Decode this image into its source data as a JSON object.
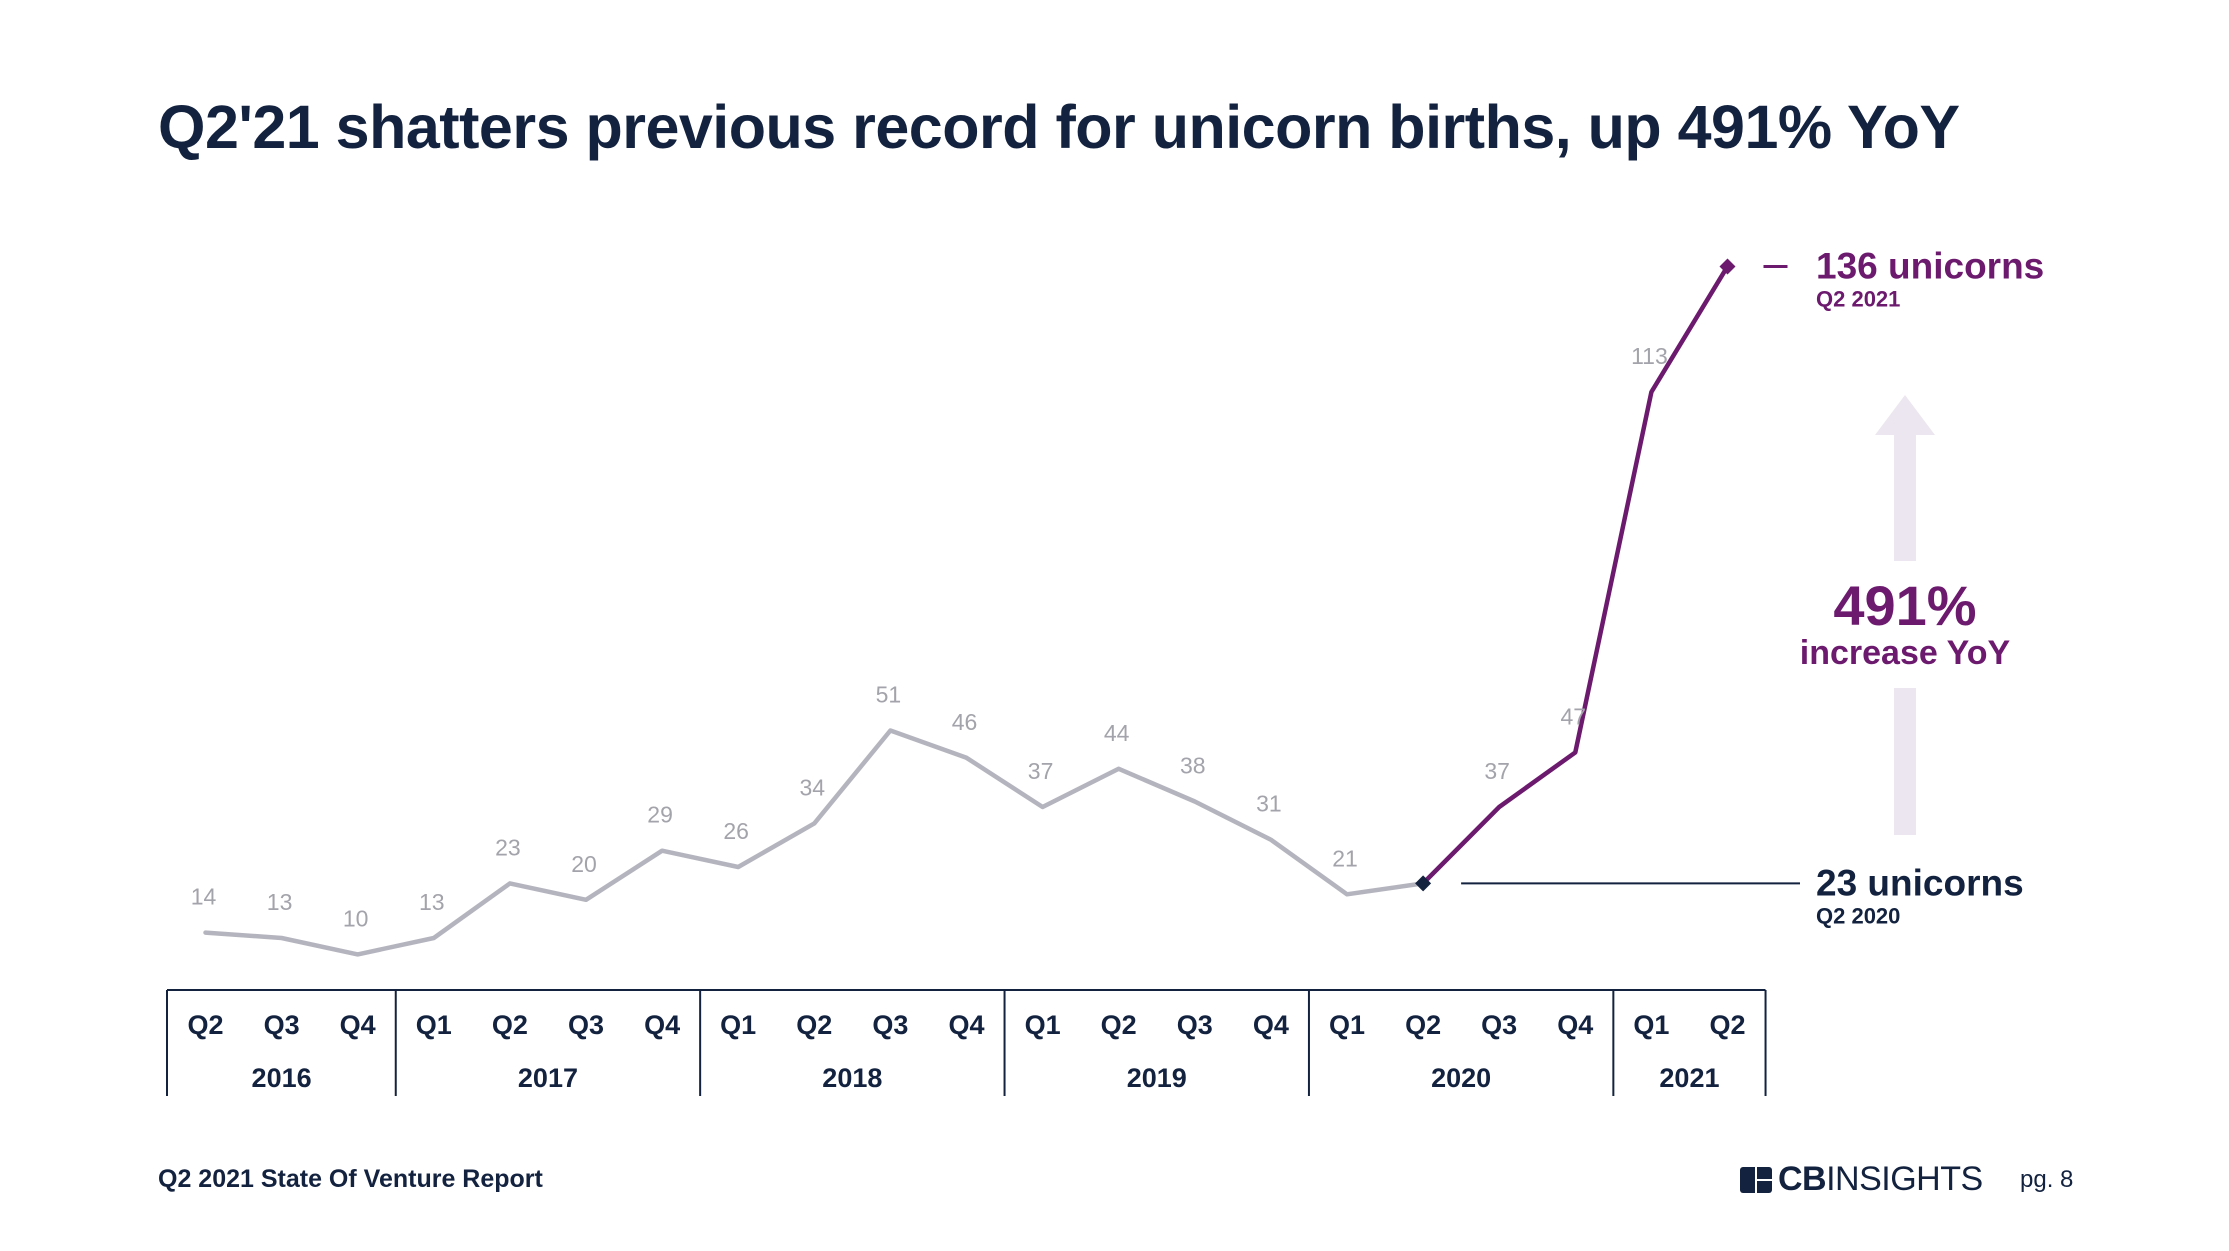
{
  "title": "Q2'21 shatters previous record for unicorn births, up 491% YoY",
  "chart_data": {
    "type": "line",
    "title": "Q2'21 shatters previous record for unicorn births, up 491% YoY",
    "xlabel": "",
    "ylabel": "",
    "categories": [
      "Q2",
      "Q3",
      "Q4",
      "Q1",
      "Q2",
      "Q3",
      "Q4",
      "Q1",
      "Q2",
      "Q3",
      "Q4",
      "Q1",
      "Q2",
      "Q3",
      "Q4",
      "Q1",
      "Q2",
      "Q3",
      "Q4",
      "Q1",
      "Q2"
    ],
    "years": [
      {
        "label": "2016",
        "quarters": 3
      },
      {
        "label": "2017",
        "quarters": 4
      },
      {
        "label": "2018",
        "quarters": 4
      },
      {
        "label": "2019",
        "quarters": 4
      },
      {
        "label": "2020",
        "quarters": 4
      },
      {
        "label": "2021",
        "quarters": 2
      }
    ],
    "values": [
      14,
      13,
      10,
      13,
      23,
      20,
      29,
      26,
      34,
      51,
      46,
      37,
      44,
      38,
      31,
      21,
      23,
      37,
      47,
      113,
      136
    ],
    "highlight_start_index": 16,
    "ylim": [
      0,
      140
    ],
    "grid": false,
    "legend": "none",
    "colors": {
      "base": "#b4b4be",
      "highlight": "#6c1a6e",
      "label": "#a3a3ab",
      "axis": "#13223f",
      "arrow": "#ece6f0"
    },
    "annotations": {
      "peak": {
        "value_text": "136 unicorns",
        "sub_text": "Q2 2021"
      },
      "base": {
        "value_text": "23 unicorns",
        "sub_text": "Q2 2020"
      },
      "growth": {
        "pct_text": "491%",
        "sub_text": "increase YoY"
      }
    }
  },
  "footer": {
    "report": "Q2 2021 State Of Venture Report",
    "logo_bold": "CB",
    "logo_light": "INSIGHTS",
    "page": "pg. 8"
  }
}
